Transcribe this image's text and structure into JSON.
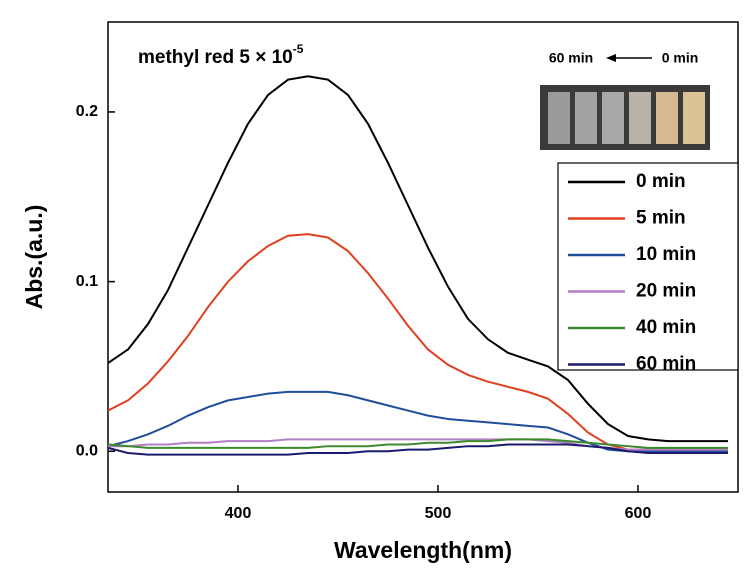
{
  "chart_data": {
    "type": "line",
    "annotation": "methyl red 5 × 10",
    "annotation_superscript": "-5",
    "photo_labels": [
      "60 min",
      "0 min"
    ],
    "xlabel": "Wavelength(nm)",
    "ylabel": "Abs.(a.u.)",
    "xlim": [
      335,
      650
    ],
    "ylim": [
      -0.024,
      0.253
    ],
    "xticks": [
      400,
      500,
      600
    ],
    "yticks": [
      {
        "value": 0,
        "label": "0.0"
      },
      0.1,
      0.2
    ],
    "legend": "right",
    "x": [
      335,
      345,
      355,
      365,
      375,
      385,
      395,
      405,
      415,
      425,
      435,
      445,
      455,
      465,
      475,
      485,
      495,
      505,
      515,
      525,
      535,
      545,
      555,
      565,
      575,
      585,
      595,
      605,
      615,
      625,
      635,
      645
    ],
    "series": [
      {
        "name": "0 min",
        "color": "#000000",
        "values": [
          0.052,
          0.06,
          0.075,
          0.095,
          0.12,
          0.145,
          0.17,
          0.193,
          0.21,
          0.219,
          0.221,
          0.219,
          0.21,
          0.193,
          0.17,
          0.145,
          0.12,
          0.097,
          0.078,
          0.066,
          0.058,
          0.054,
          0.05,
          0.042,
          0.028,
          0.016,
          0.009,
          0.007,
          0.006,
          0.006,
          0.006,
          0.006
        ]
      },
      {
        "name": "5 min",
        "color": "#e0401e",
        "values": [
          0.024,
          0.03,
          0.04,
          0.053,
          0.068,
          0.085,
          0.1,
          0.112,
          0.121,
          0.127,
          0.128,
          0.126,
          0.118,
          0.105,
          0.09,
          0.074,
          0.06,
          0.051,
          0.045,
          0.041,
          0.038,
          0.035,
          0.031,
          0.022,
          0.011,
          0.004,
          0.001,
          0.001,
          0.001,
          0.001,
          0.001,
          0.001
        ]
      },
      {
        "name": "10 min",
        "color": "#1f4e9a",
        "values": [
          0.003,
          0.006,
          0.01,
          0.015,
          0.021,
          0.026,
          0.03,
          0.032,
          0.034,
          0.035,
          0.035,
          0.035,
          0.033,
          0.03,
          0.027,
          0.024,
          0.021,
          0.019,
          0.018,
          0.017,
          0.016,
          0.015,
          0.014,
          0.01,
          0.005,
          0.001,
          0,
          0,
          0,
          0,
          0,
          0
        ]
      },
      {
        "name": "20 min",
        "color": "#b57fc4",
        "values": [
          0.003,
          0.003,
          0.004,
          0.004,
          0.005,
          0.005,
          0.006,
          0.006,
          0.006,
          0.007,
          0.007,
          0.007,
          0.007,
          0.007,
          0.007,
          0.007,
          0.007,
          0.007,
          0.007,
          0.007,
          0.007,
          0.007,
          0.006,
          0.005,
          0.003,
          0.002,
          0.001,
          0.001,
          0.001,
          0.001,
          0.001,
          0.001
        ]
      },
      {
        "name": "40 min",
        "color": "#3d8a2e",
        "values": [
          0.004,
          0.003,
          0.002,
          0.002,
          0.002,
          0.002,
          0.002,
          0.002,
          0.002,
          0.002,
          0.002,
          0.003,
          0.003,
          0.003,
          0.004,
          0.004,
          0.005,
          0.005,
          0.006,
          0.006,
          0.007,
          0.007,
          0.007,
          0.006,
          0.005,
          0.004,
          0.003,
          0.002,
          0.002,
          0.002,
          0.002,
          0.002
        ]
      },
      {
        "name": "60 min",
        "color": "#1a1a6e",
        "values": [
          0.002,
          -0.001,
          -0.002,
          -0.002,
          -0.002,
          -0.002,
          -0.002,
          -0.002,
          -0.002,
          -0.002,
          -0.001,
          -0.001,
          -0.001,
          0,
          0,
          0.001,
          0.001,
          0.002,
          0.003,
          0.003,
          0.004,
          0.004,
          0.004,
          0.004,
          0.003,
          0.002,
          0,
          -0.001,
          -0.001,
          -0.001,
          -0.001,
          -0.001
        ]
      }
    ]
  }
}
